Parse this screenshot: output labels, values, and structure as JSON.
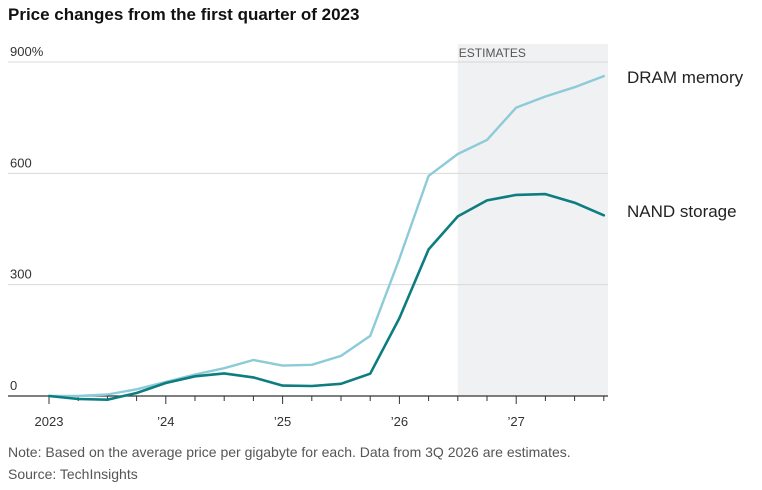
{
  "title": "Price changes from the first quarter of 2023",
  "note": "Note: Based on the average price per gigabyte for each. Data from 3Q 2026 are estimates.",
  "source": "Source: TechInsights",
  "chart_data": {
    "type": "line",
    "x": [
      "1Q 2023",
      "2Q 2023",
      "3Q 2023",
      "4Q 2023",
      "1Q 2024",
      "2Q 2024",
      "3Q 2024",
      "4Q 2024",
      "1Q 2025",
      "2Q 2025",
      "3Q 2025",
      "4Q 2025",
      "1Q 2026",
      "2Q 2026",
      "3Q 2026",
      "4Q 2026",
      "1Q 2027",
      "2Q 2027",
      "3Q 2027",
      "4Q 2027"
    ],
    "x_tick_labels": [
      {
        "index": 0,
        "label": "2023"
      },
      {
        "index": 4,
        "label": "’24"
      },
      {
        "index": 8,
        "label": "’25"
      },
      {
        "index": 12,
        "label": "’26"
      },
      {
        "index": 16,
        "label": "’27"
      }
    ],
    "y_ticks": [
      {
        "value": 0,
        "label": "0"
      },
      {
        "value": 300,
        "label": "300"
      },
      {
        "value": 600,
        "label": "600"
      },
      {
        "value": 900,
        "label": "900%"
      }
    ],
    "ylim": [
      -10,
      900
    ],
    "grid": true,
    "estimates": {
      "label": "ESTIMATES",
      "start_index": 14,
      "end_index": 19,
      "color": "#f0f1f3"
    },
    "series": [
      {
        "name": "DRAM memory",
        "color": "#8ccbd7",
        "values": [
          0,
          0,
          4,
          18,
          38,
          58,
          75,
          97,
          82,
          84,
          108,
          162,
          370,
          593,
          652,
          690,
          777,
          807,
          832,
          862
        ]
      },
      {
        "name": "NAND storage",
        "color": "#0d7d80",
        "values": [
          0,
          -8,
          -10,
          8,
          35,
          53,
          61,
          50,
          28,
          27,
          33,
          60,
          210,
          395,
          484,
          527,
          542,
          544,
          521,
          487
        ]
      }
    ]
  }
}
